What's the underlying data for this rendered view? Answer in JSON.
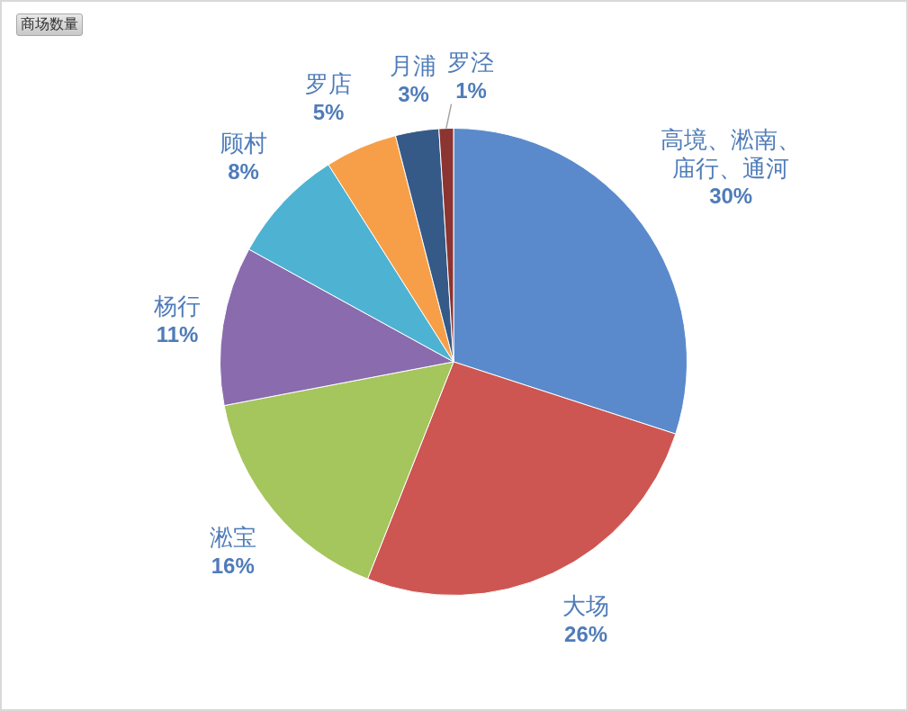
{
  "chart_data": {
    "type": "pie",
    "title": "商场数量",
    "categories": [
      "高境、淞南、庙行、通河",
      "大场",
      "淞宝",
      "杨行",
      "顾村",
      "罗店",
      "月浦",
      "罗泾"
    ],
    "values": [
      30,
      26,
      16,
      11,
      8,
      5,
      3,
      1
    ],
    "colors": [
      "#5a8acb",
      "#cd5652",
      "#a5c55d",
      "#8a6bae",
      "#4eb3d3",
      "#f79f48",
      "#355a87",
      "#8b3431"
    ],
    "value_labels": [
      "30%",
      "26%",
      "16%",
      "11%",
      "8%",
      "5%",
      "3%",
      "1%"
    ]
  }
}
